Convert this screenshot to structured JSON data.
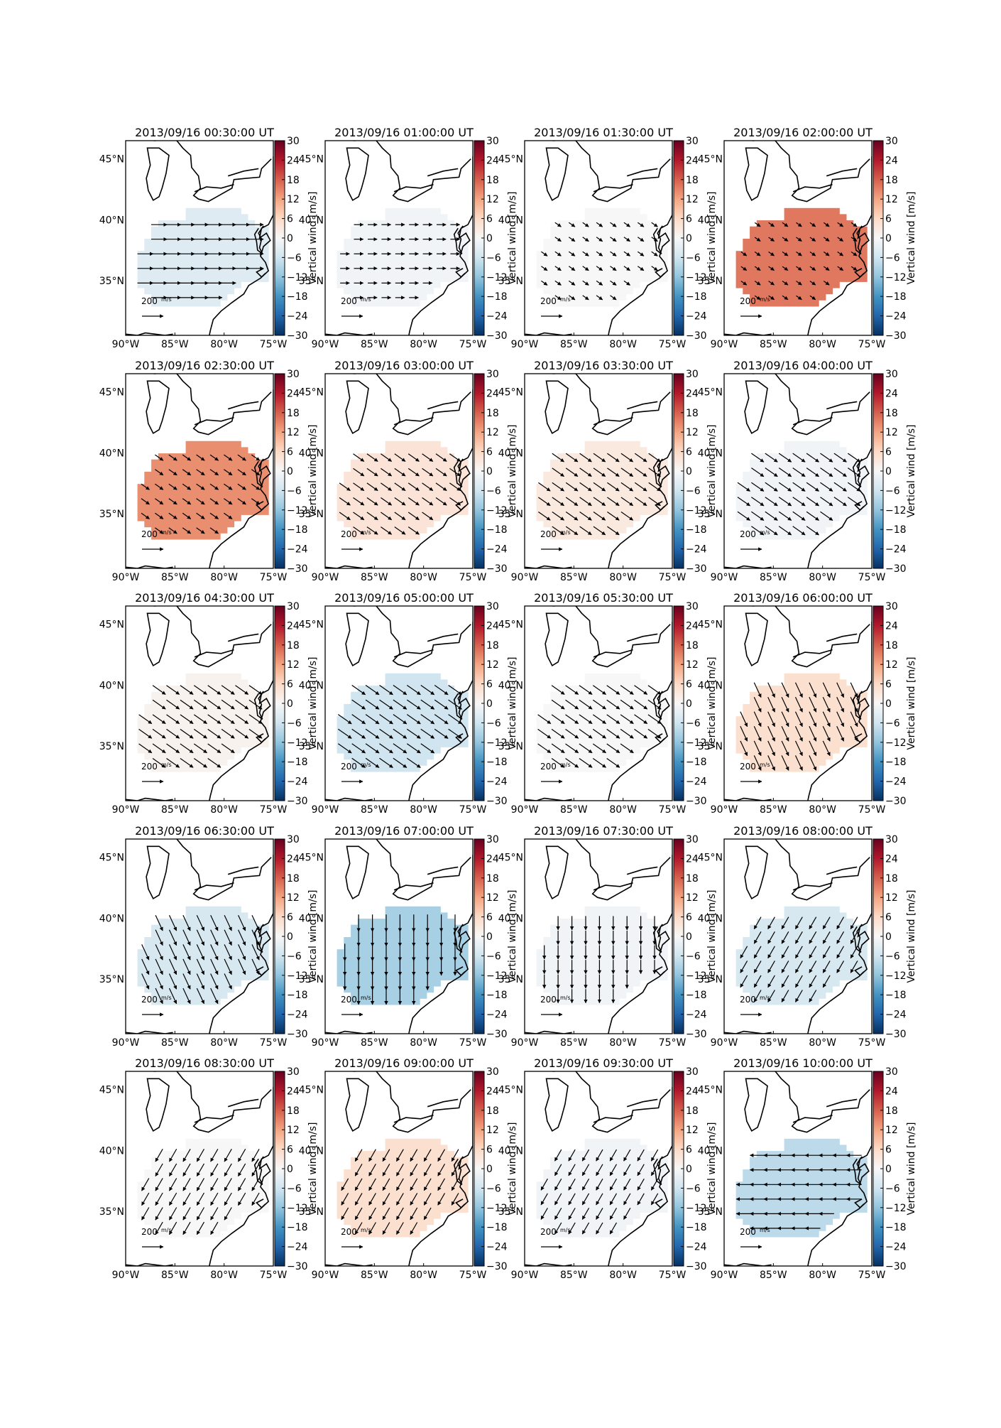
{
  "figure": {
    "colorbar_label": "Vertical wind [m/s]",
    "colorbar_ticks": [
      30,
      24,
      18,
      12,
      6,
      0,
      -6,
      -12,
      -18,
      -24,
      -30
    ],
    "clim": [
      -30,
      30
    ],
    "lon_ticks": [
      "90°W",
      "85°W",
      "80°W",
      "75°W"
    ],
    "lat_ticks": [
      "45°N",
      "40°N",
      "35°N"
    ],
    "reference_arrow_label": "200",
    "reference_arrow_units": "m/s",
    "colormap": "RdBu_r",
    "colors": {
      "negative_max": "#053061",
      "neutral": "#f7f7f7",
      "positive_max": "#67001f"
    },
    "rows": 5,
    "cols": 4
  },
  "chart_data": [
    {
      "type": "heatmap",
      "title": "2013/09/16 00:30:00 UT",
      "vertical_wind": -4,
      "arrow_direction": "east",
      "arrow_strength": 0.9
    },
    {
      "type": "heatmap",
      "title": "2013/09/16 01:00:00 UT",
      "vertical_wind": -1,
      "arrow_direction": "east",
      "arrow_strength": 0.4
    },
    {
      "type": "heatmap",
      "title": "2013/09/16 01:30:00 UT",
      "vertical_wind": 0,
      "arrow_direction": "southeast",
      "arrow_strength": 0.25
    },
    {
      "type": "heatmap",
      "title": "2013/09/16 02:00:00 UT",
      "vertical_wind": 16,
      "arrow_direction": "southeast",
      "arrow_strength": 0.2
    },
    {
      "type": "heatmap",
      "title": "2013/09/16 02:30:00 UT",
      "vertical_wind": 14,
      "arrow_direction": "southeast",
      "arrow_strength": 0.45
    },
    {
      "type": "heatmap",
      "title": "2013/09/16 03:00:00 UT",
      "vertical_wind": 4,
      "arrow_direction": "southeast",
      "arrow_strength": 0.7
    },
    {
      "type": "heatmap",
      "title": "2013/09/16 03:30:00 UT",
      "vertical_wind": 3,
      "arrow_direction": "southeast",
      "arrow_strength": 0.8
    },
    {
      "type": "heatmap",
      "title": "2013/09/16 04:00:00 UT",
      "vertical_wind": -1,
      "arrow_direction": "southeast",
      "arrow_strength": 0.85
    },
    {
      "type": "heatmap",
      "title": "2013/09/16 04:30:00 UT",
      "vertical_wind": 1,
      "arrow_direction": "southeast",
      "arrow_strength": 0.9
    },
    {
      "type": "heatmap",
      "title": "2013/09/16 05:00:00 UT",
      "vertical_wind": -6,
      "arrow_direction": "southeast",
      "arrow_strength": 0.95
    },
    {
      "type": "heatmap",
      "title": "2013/09/16 05:30:00 UT",
      "vertical_wind": 0,
      "arrow_direction": "southeast",
      "arrow_strength": 0.9
    },
    {
      "type": "heatmap",
      "title": "2013/09/16 06:00:00 UT",
      "vertical_wind": 5,
      "arrow_direction": "south-southeast",
      "arrow_strength": 0.95
    },
    {
      "type": "heatmap",
      "title": "2013/09/16 06:30:00 UT",
      "vertical_wind": -5,
      "arrow_direction": "south-southeast",
      "arrow_strength": 1.0
    },
    {
      "type": "heatmap",
      "title": "2013/09/16 07:00:00 UT",
      "vertical_wind": -10,
      "arrow_direction": "south",
      "arrow_strength": 1.0
    },
    {
      "type": "heatmap",
      "title": "2013/09/16 07:30:00 UT",
      "vertical_wind": -1,
      "arrow_direction": "south",
      "arrow_strength": 0.75
    },
    {
      "type": "heatmap",
      "title": "2013/09/16 08:00:00 UT",
      "vertical_wind": -5,
      "arrow_direction": "southwest",
      "arrow_strength": 0.75
    },
    {
      "type": "heatmap",
      "title": "2013/09/16 08:30:00 UT",
      "vertical_wind": 0,
      "arrow_direction": "southwest",
      "arrow_strength": 0.8
    },
    {
      "type": "heatmap",
      "title": "2013/09/16 09:00:00 UT",
      "vertical_wind": 5,
      "arrow_direction": "southwest",
      "arrow_strength": 0.75
    },
    {
      "type": "heatmap",
      "title": "2013/09/16 09:30:00 UT",
      "vertical_wind": -1,
      "arrow_direction": "southwest",
      "arrow_strength": 0.7
    },
    {
      "type": "heatmap",
      "title": "2013/09/16 10:00:00 UT",
      "vertical_wind": -8,
      "arrow_direction": "west",
      "arrow_strength": 0.85
    }
  ]
}
